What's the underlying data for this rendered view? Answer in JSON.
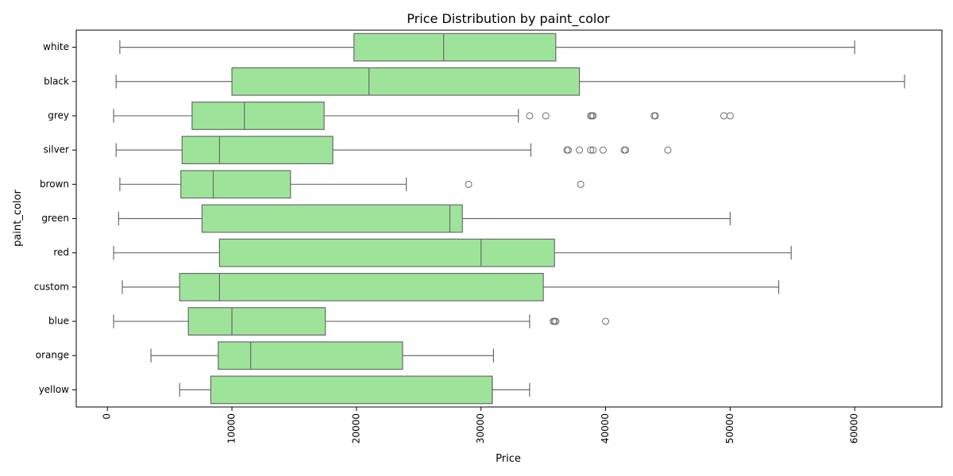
{
  "chart_data": {
    "type": "box",
    "orientation": "horizontal",
    "title": "Price Distribution by paint_color",
    "xlabel": "Price",
    "ylabel": "paint_color",
    "xlim": [
      -2500,
      67000
    ],
    "xticks": [
      0,
      10000,
      20000,
      30000,
      40000,
      50000,
      60000
    ],
    "xtick_labels": [
      "0",
      "10000",
      "20000",
      "30000",
      "40000",
      "50000",
      "60000"
    ],
    "xtick_rotation": 90,
    "grid": false,
    "legend": "none",
    "colors": {
      "box_fill": "#9de49a",
      "line": "#6b6b6b"
    },
    "categories": [
      "white",
      "black",
      "grey",
      "silver",
      "brown",
      "green",
      "red",
      "custom",
      "blue",
      "orange",
      "yellow"
    ],
    "boxes": [
      {
        "category": "white",
        "whislo": 1000,
        "q1": 19800,
        "med": 27000,
        "q3": 36000,
        "whishi": 60000,
        "fliers": []
      },
      {
        "category": "black",
        "whislo": 700,
        "q1": 10000,
        "med": 21000,
        "q3": 37900,
        "whishi": 64000,
        "fliers": []
      },
      {
        "category": "grey",
        "whislo": 500,
        "q1": 6800,
        "med": 11000,
        "q3": 17400,
        "whishi": 33000,
        "fliers": [
          33900,
          35200,
          38800,
          38900,
          39000,
          43900,
          44000,
          49500,
          50000
        ]
      },
      {
        "category": "silver",
        "whislo": 700,
        "q1": 6000,
        "med": 9000,
        "q3": 18100,
        "whishi": 34000,
        "fliers": [
          36900,
          37000,
          37900,
          38800,
          39000,
          39800,
          41500,
          41600,
          45000
        ]
      },
      {
        "category": "brown",
        "whislo": 1000,
        "q1": 5900,
        "med": 8500,
        "q3": 14700,
        "whishi": 24000,
        "fliers": [
          29000,
          38000
        ]
      },
      {
        "category": "green",
        "whislo": 900,
        "q1": 7600,
        "med": 27500,
        "q3": 28500,
        "whishi": 50000,
        "fliers": []
      },
      {
        "category": "red",
        "whislo": 500,
        "q1": 9000,
        "med": 30000,
        "q3": 35900,
        "whishi": 54900,
        "fliers": []
      },
      {
        "category": "custom",
        "whislo": 1200,
        "q1": 5800,
        "med": 9000,
        "q3": 35000,
        "whishi": 53900,
        "fliers": []
      },
      {
        "category": "blue",
        "whislo": 500,
        "q1": 6500,
        "med": 10000,
        "q3": 17500,
        "whishi": 33900,
        "fliers": [
          35800,
          35900,
          36000,
          40000
        ]
      },
      {
        "category": "orange",
        "whislo": 3500,
        "q1": 8900,
        "med": 11500,
        "q3": 23700,
        "whishi": 31000,
        "fliers": []
      },
      {
        "category": "yellow",
        "whislo": 5800,
        "q1": 8300,
        "med": 30900,
        "q3": 30900,
        "whishi": 33900,
        "fliers": []
      }
    ]
  }
}
